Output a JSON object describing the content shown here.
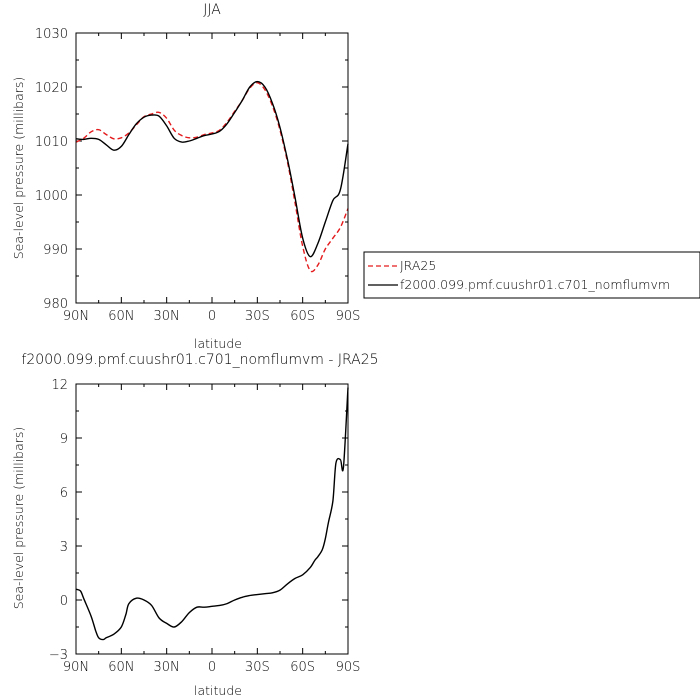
{
  "chart_data": [
    {
      "type": "line",
      "title": "JJA",
      "xlabel": "latitude",
      "ylabel": "Sea-level pressure (millibars)",
      "xlim": [
        90,
        -90
      ],
      "ylim": [
        980,
        1030
      ],
      "x_ticks": [
        "90N",
        "60N",
        "30N",
        "0",
        "30S",
        "60S",
        "90S"
      ],
      "y_ticks": [
        "980",
        "990",
        "1000",
        "1010",
        "1020",
        "1030"
      ],
      "legend_position": "outside-right",
      "series": [
        {
          "name": "JRA25",
          "color": "#e41a1c",
          "dash": "dashed",
          "x": [
            90,
            85,
            80,
            75,
            70,
            65,
            60,
            55,
            50,
            45,
            40,
            35,
            30,
            25,
            20,
            15,
            10,
            5,
            0,
            -5,
            -10,
            -15,
            -20,
            -25,
            -30,
            -35,
            -40,
            -45,
            -50,
            -55,
            -60,
            -65,
            -70,
            -75,
            -80,
            -85,
            -90
          ],
          "y": [
            1009.8,
            1010.5,
            1011.7,
            1012.1,
            1011.2,
            1010.4,
            1010.6,
            1011.5,
            1013.0,
            1014.5,
            1015.0,
            1015.3,
            1014.2,
            1012.0,
            1011.0,
            1010.6,
            1010.7,
            1011.2,
            1011.5,
            1012.0,
            1013.5,
            1015.5,
            1017.5,
            1019.8,
            1020.8,
            1019.5,
            1016.5,
            1012.0,
            1006.0,
            998.5,
            990.5,
            986.0,
            987.0,
            990.0,
            992.0,
            994.0,
            997.5
          ]
        },
        {
          "name": "f2000.099.pmf.cuushr01.c701_nomflumvm",
          "color": "#000000",
          "dash": "solid",
          "x": [
            90,
            85,
            80,
            75,
            70,
            65,
            60,
            55,
            50,
            45,
            40,
            35,
            30,
            25,
            20,
            15,
            10,
            5,
            0,
            -5,
            -10,
            -15,
            -20,
            -25,
            -30,
            -35,
            -40,
            -45,
            -50,
            -55,
            -60,
            -65,
            -70,
            -75,
            -80,
            -85,
            -90
          ],
          "y": [
            1010.4,
            1010.3,
            1010.5,
            1010.3,
            1009.3,
            1008.3,
            1009.0,
            1011.2,
            1013.2,
            1014.4,
            1014.8,
            1014.6,
            1012.8,
            1010.5,
            1009.8,
            1010.0,
            1010.5,
            1011.0,
            1011.3,
            1011.8,
            1013.2,
            1015.3,
            1017.5,
            1020.0,
            1021.0,
            1020.0,
            1017.0,
            1012.5,
            1006.5,
            999.5,
            992.0,
            988.6,
            991.0,
            995.0,
            999.0,
            1001.0,
            1009.5
          ]
        }
      ]
    },
    {
      "type": "line",
      "title": "f2000.099.pmf.cuushr01.c701_nomflumvm - JRA25",
      "xlabel": "latitude",
      "ylabel": "Sea-level pressure (millibars)",
      "xlim": [
        90,
        -90
      ],
      "ylim": [
        -3,
        12
      ],
      "x_ticks": [
        "90N",
        "60N",
        "30N",
        "0",
        "30S",
        "60S",
        "90S"
      ],
      "y_ticks": [
        "-3",
        "0",
        "3",
        "6",
        "9",
        "12"
      ],
      "series": [
        {
          "color": "#000000",
          "dash": "solid",
          "x": [
            90,
            87,
            85,
            80,
            77,
            75,
            72,
            70,
            65,
            60,
            57,
            55,
            50,
            45,
            40,
            35,
            30,
            25,
            20,
            15,
            10,
            5,
            0,
            -5,
            -10,
            -15,
            -20,
            -25,
            -30,
            -35,
            -40,
            -45,
            -50,
            -55,
            -60,
            -65,
            -68,
            -70,
            -73,
            -75,
            -77,
            -80,
            -82,
            -85,
            -87,
            -90
          ],
          "y": [
            0.6,
            0.5,
            0.1,
            -0.9,
            -1.7,
            -2.1,
            -2.2,
            -2.1,
            -1.9,
            -1.5,
            -0.8,
            -0.2,
            0.1,
            0.0,
            -0.3,
            -1.0,
            -1.3,
            -1.5,
            -1.2,
            -0.7,
            -0.4,
            -0.4,
            -0.35,
            -0.3,
            -0.2,
            0.0,
            0.15,
            0.25,
            0.3,
            0.35,
            0.4,
            0.55,
            0.9,
            1.2,
            1.4,
            1.8,
            2.2,
            2.4,
            2.8,
            3.4,
            4.3,
            5.5,
            7.6,
            7.8,
            7.4,
            11.8
          ]
        }
      ]
    }
  ]
}
